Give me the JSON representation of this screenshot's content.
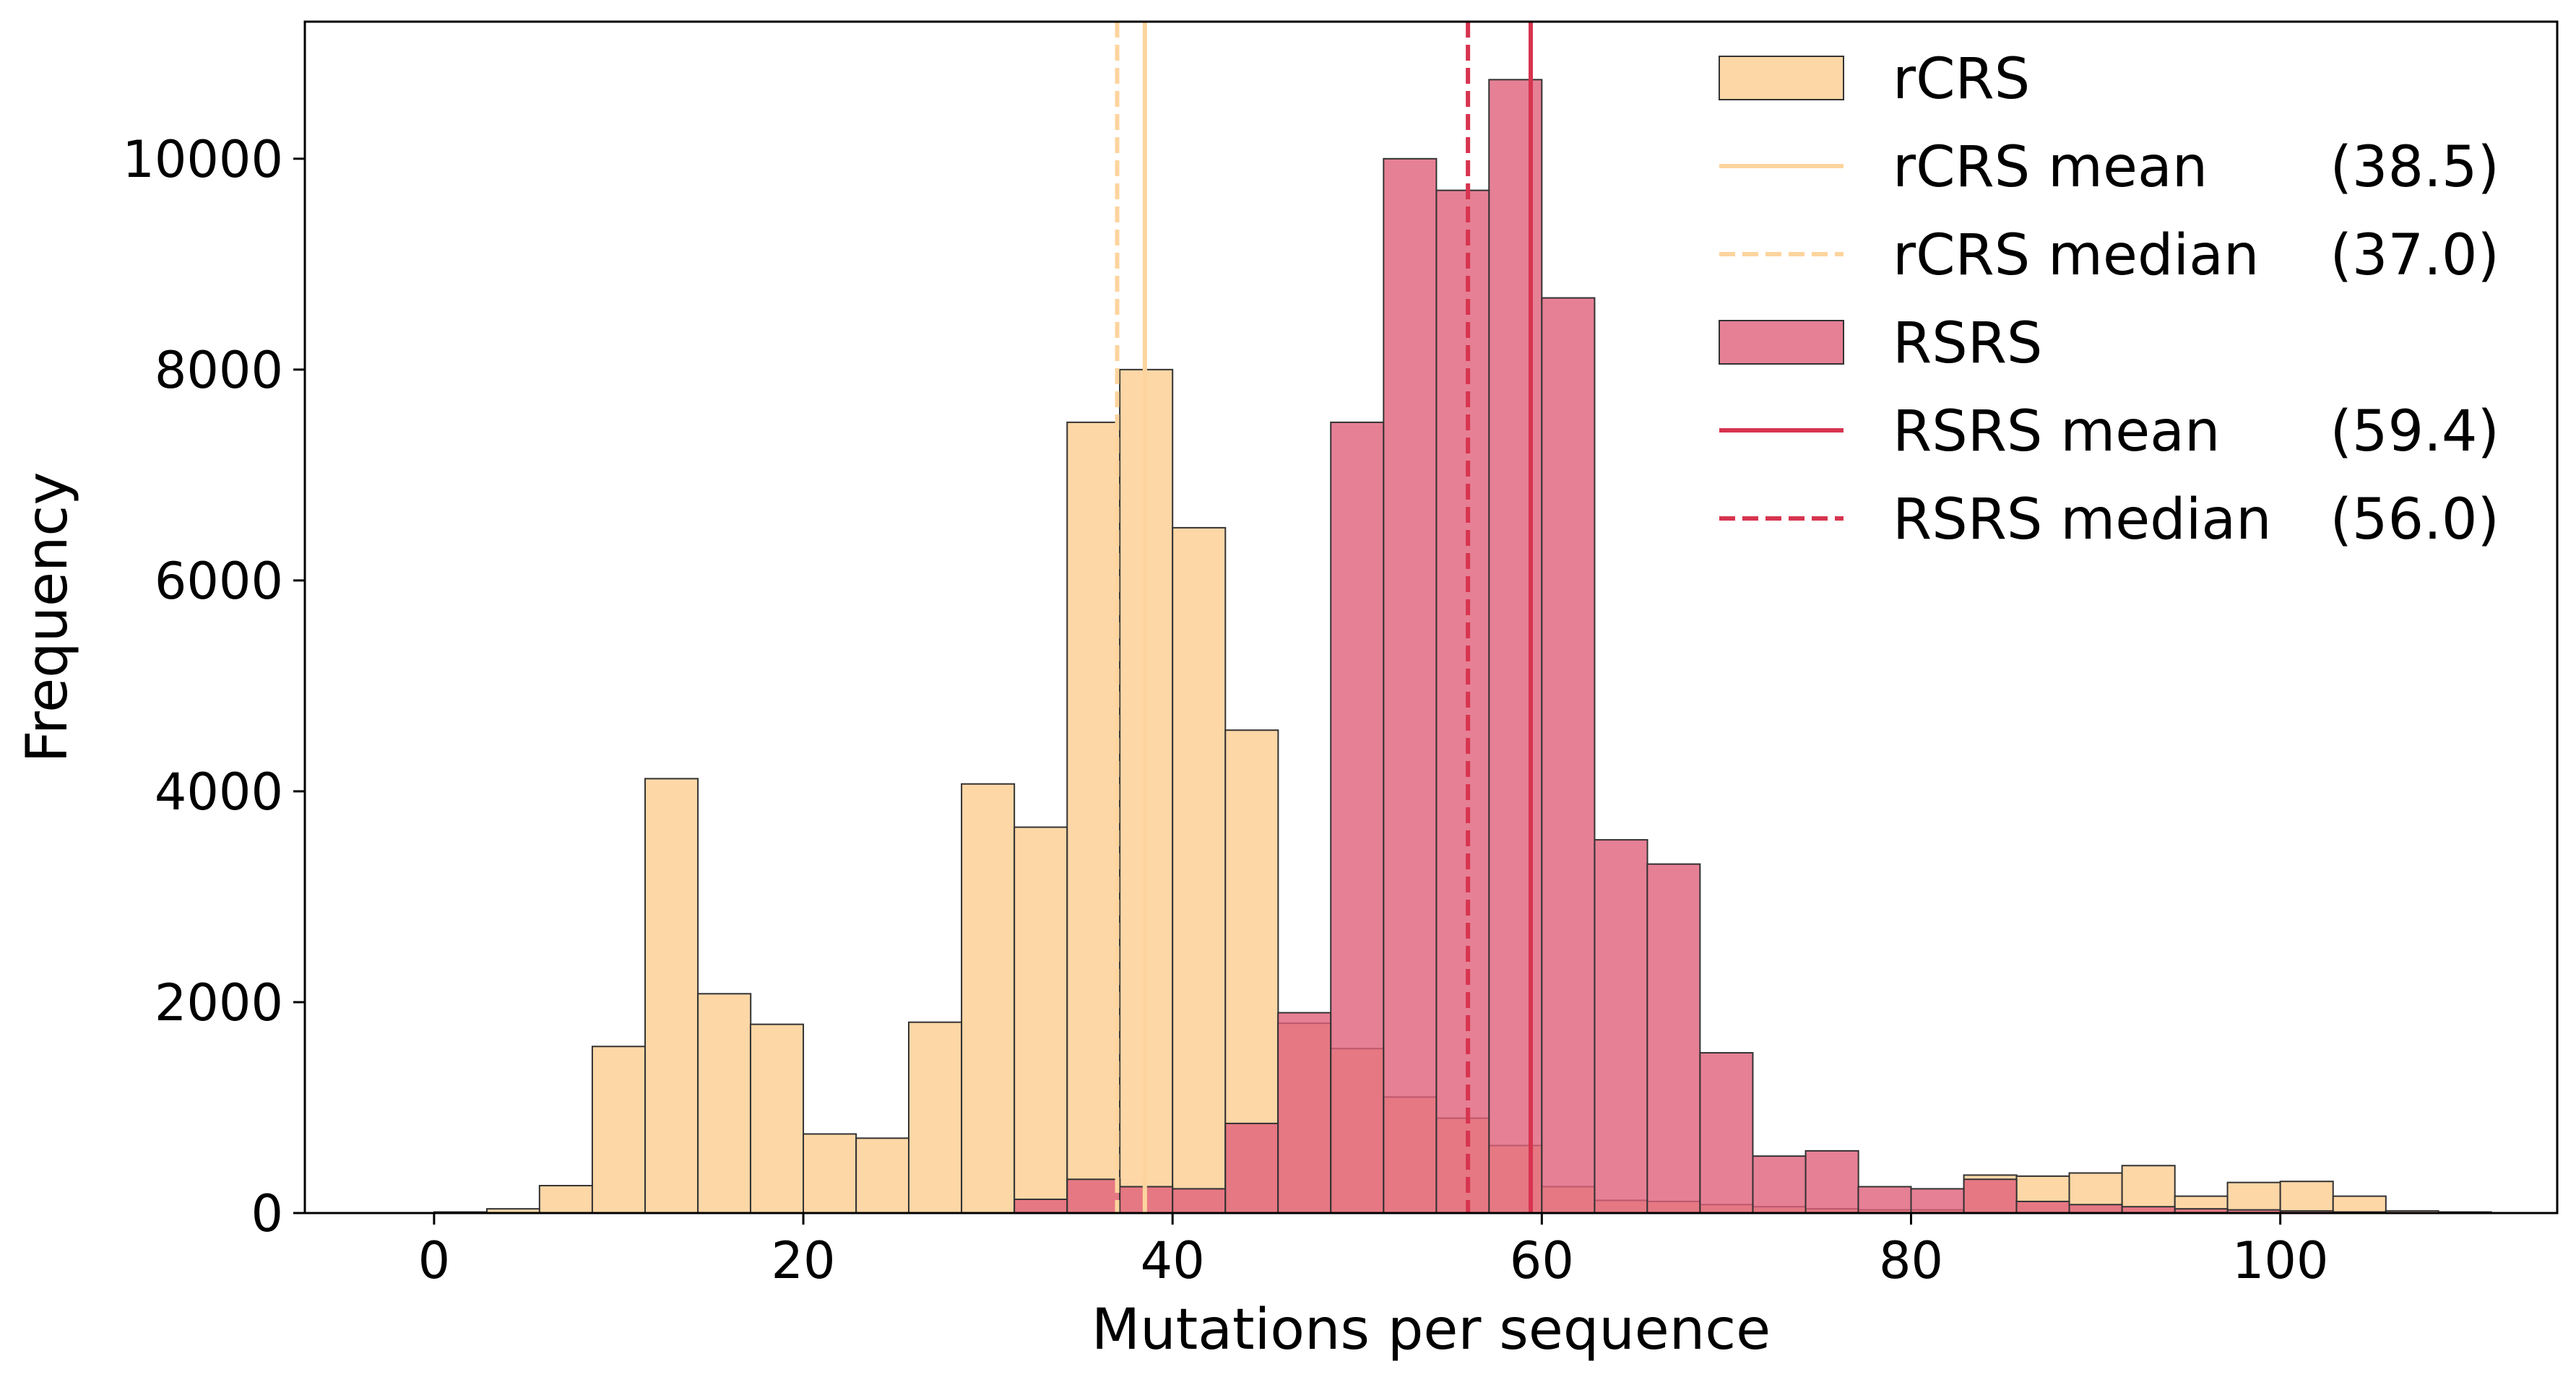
{
  "chart_data": {
    "type": "bar",
    "subtype": "overlapping-histogram",
    "title": "",
    "xlabel": "Mutations per sequence",
    "ylabel": "Frequency",
    "xlim": [
      -7,
      115
    ],
    "ylim": [
      0,
      11300
    ],
    "xticks": [
      0,
      20,
      40,
      60,
      80,
      100
    ],
    "yticks": [
      0,
      2000,
      4000,
      6000,
      8000,
      10000
    ],
    "grid": false,
    "legend_position": "top-right",
    "bin_edges": [
      0,
      2.86,
      5.71,
      8.57,
      11.43,
      14.29,
      17.14,
      20,
      22.86,
      25.71,
      28.57,
      31.43,
      34.29,
      37.14,
      40,
      42.86,
      45.71,
      48.57,
      51.43,
      54.29,
      57.14,
      60,
      62.86,
      65.71,
      68.57,
      71.43,
      74.29,
      77.14,
      80,
      82.86,
      85.71,
      88.57,
      91.43,
      94.29,
      97.14,
      100,
      102.86,
      105.71,
      108.57
    ],
    "series": [
      {
        "name": "rCRS",
        "color": "#fdd49e",
        "values": [
          10,
          40,
          260,
          1580,
          4120,
          2080,
          1790,
          750,
          710,
          1810,
          4070,
          3660,
          7500,
          8000,
          6500,
          4580,
          1800,
          1560,
          1100,
          900,
          640,
          250,
          120,
          110,
          80,
          60,
          40,
          30,
          30,
          360,
          350,
          380,
          450,
          160,
          290,
          300,
          160,
          20,
          10
        ]
      },
      {
        "name": "RSRS",
        "color": "#e0607a",
        "values": [
          0,
          0,
          0,
          0,
          0,
          0,
          0,
          0,
          0,
          0,
          0,
          130,
          320,
          250,
          230,
          850,
          1900,
          7500,
          10000,
          9700,
          10750,
          8680,
          3540,
          3310,
          1520,
          540,
          590,
          250,
          230,
          320,
          110,
          80,
          60,
          40,
          30,
          20,
          10,
          0,
          0
        ]
      }
    ],
    "reference_lines": [
      {
        "name": "rCRS mean",
        "value": 38.5,
        "style": "solid",
        "color": "#fdd49e"
      },
      {
        "name": "rCRS median",
        "value": 37.0,
        "style": "dashed",
        "color": "#fdd49e"
      },
      {
        "name": "RSRS mean",
        "value": 59.4,
        "style": "solid",
        "color": "#d7344f"
      },
      {
        "name": "RSRS median",
        "value": 56.0,
        "style": "dashed",
        "color": "#d7344f"
      }
    ],
    "legend": [
      {
        "kind": "patch",
        "label": "rCRS",
        "value": "",
        "color": "#fdd49e"
      },
      {
        "kind": "solid",
        "label": "rCRS mean",
        "value": "(38.5)",
        "color": "#fdd49e"
      },
      {
        "kind": "dashed",
        "label": "rCRS median",
        "value": "(37.0)",
        "color": "#fdd49e"
      },
      {
        "kind": "patch",
        "label": "RSRS",
        "value": "",
        "color": "#e0607a"
      },
      {
        "kind": "solid",
        "label": "RSRS mean",
        "value": "(59.4)",
        "color": "#d7344f"
      },
      {
        "kind": "dashed",
        "label": "RSRS median",
        "value": "(56.0)",
        "color": "#d7344f"
      }
    ]
  }
}
